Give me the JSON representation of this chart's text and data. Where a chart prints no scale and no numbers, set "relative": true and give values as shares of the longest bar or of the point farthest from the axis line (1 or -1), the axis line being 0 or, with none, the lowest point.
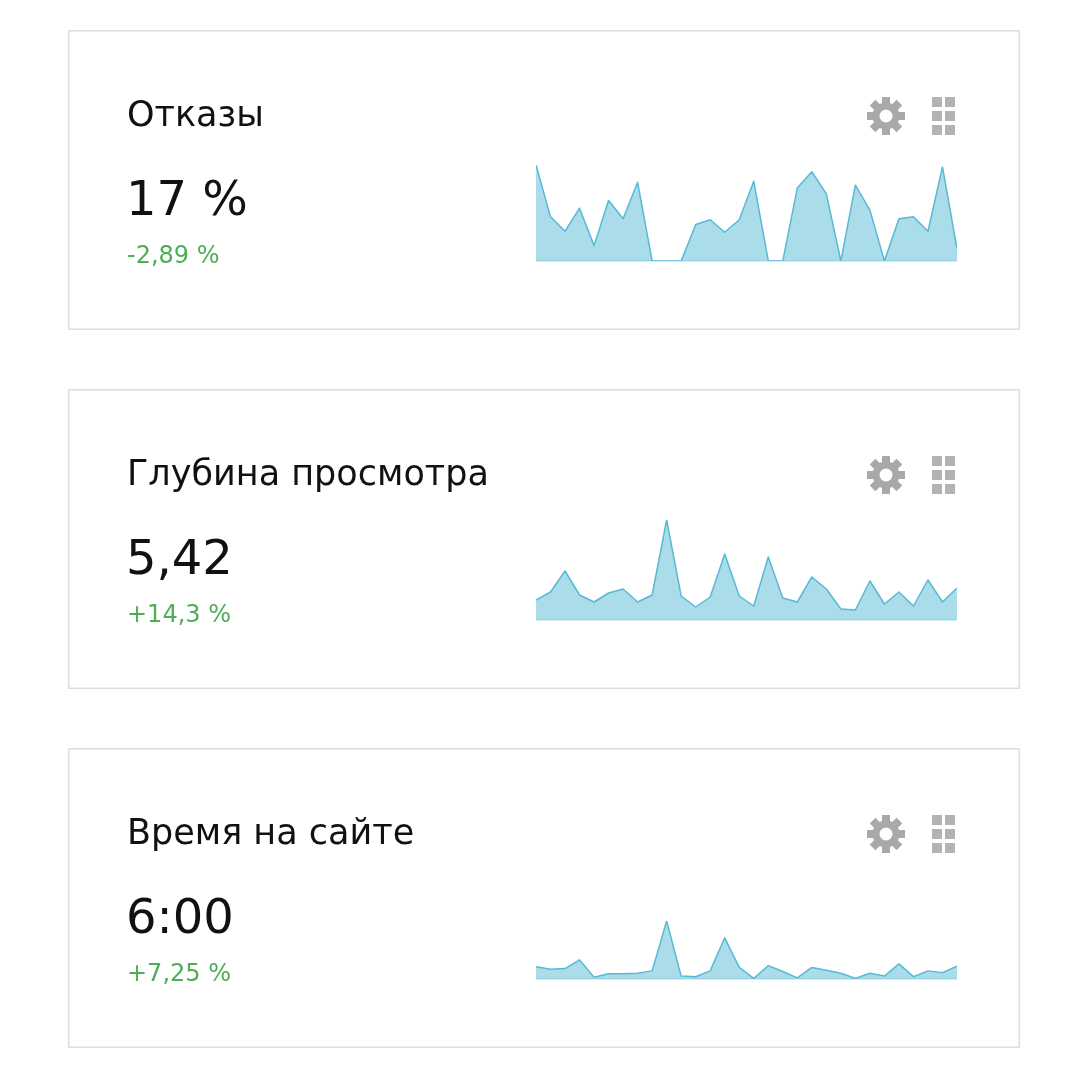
{
  "chart_data": [
    {
      "type": "area",
      "annotations": [
        "Отказы",
        "17 %",
        "-2,89 %"
      ],
      "relative": true,
      "color": "#58b9d6",
      "categories": [
        null,
        null,
        null,
        null,
        null,
        null,
        null,
        null,
        null,
        null,
        null,
        null,
        null,
        null,
        null,
        null,
        null,
        null,
        null,
        null,
        null,
        null,
        null,
        null,
        null,
        null,
        null,
        null,
        null,
        null
      ],
      "values": [
        1.0,
        0.46,
        0.31,
        0.55,
        0.16,
        0.63,
        0.44,
        0.82,
        0,
        0,
        0,
        0.38,
        0.43,
        0.3,
        0.43,
        0.83,
        0,
        0,
        0.76,
        0.93,
        0.7,
        0,
        0.79,
        0.53,
        0,
        0.44,
        0.46,
        0.31,
        0.98,
        0.13
      ]
    },
    {
      "type": "area",
      "title": "Глубина просмотра",
      "annotations": [
        "5,42",
        "+14,3 %"
      ],
      "relative": true,
      "color": "#58b9d6",
      "categories": [
        null,
        null,
        null,
        null,
        null,
        null,
        null,
        null,
        null,
        null,
        null,
        null,
        null,
        null,
        null,
        null,
        null,
        null,
        null,
        null,
        null,
        null,
        null,
        null,
        null,
        null,
        null,
        null,
        null,
        null
      ],
      "values": [
        0.2,
        0.28,
        0.49,
        0.25,
        0.18,
        0.27,
        0.31,
        0.18,
        0.25,
        1.0,
        0.24,
        0.13,
        0.23,
        0.66,
        0.24,
        0.14,
        0.63,
        0.22,
        0.18,
        0.43,
        0.31,
        0.11,
        0.1,
        0.39,
        0.16,
        0.28,
        0.14,
        0.4,
        0.18,
        0.32
      ]
    },
    {
      "type": "area",
      "title": "Время на сайте",
      "annotations": [
        "6:00",
        "+7,25 %"
      ],
      "relative": true,
      "color": "#58b9d6",
      "categories": [
        null,
        null,
        null,
        null,
        null,
        null,
        null,
        null,
        null,
        null,
        null,
        null,
        null,
        null,
        null,
        null,
        null,
        null,
        null,
        null,
        null,
        null,
        null,
        null,
        null,
        null,
        null,
        null,
        null,
        null
      ],
      "values": [
        0.21,
        0.17,
        0.18,
        0.33,
        0.03,
        0.09,
        0.09,
        0.1,
        0.14,
        1.0,
        0.05,
        0.04,
        0.14,
        0.71,
        0.2,
        0.01,
        0.23,
        0.13,
        0.02,
        0.2,
        0.15,
        0.1,
        0.01,
        0.1,
        0.05,
        0.26,
        0.04,
        0.14,
        0.11,
        0.22
      ]
    }
  ]
}
